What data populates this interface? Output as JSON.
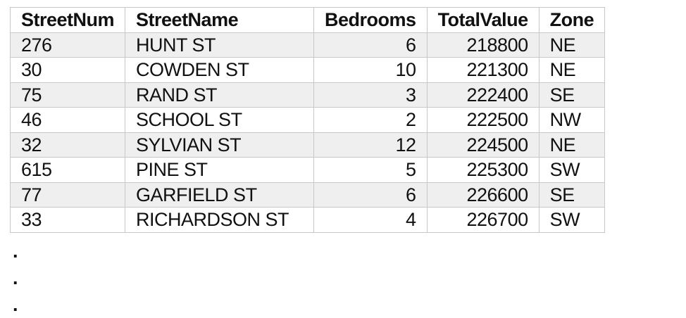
{
  "table": {
    "columns": [
      "StreetNum",
      "StreetName",
      "Bedrooms",
      "TotalValue",
      "Zone"
    ],
    "rows": [
      [
        "276",
        "HUNT ST",
        "6",
        "218800",
        "NE"
      ],
      [
        "30",
        "COWDEN ST",
        "10",
        "221300",
        "NE"
      ],
      [
        "75",
        "RAND ST",
        "3",
        "222400",
        "SE"
      ],
      [
        "46",
        "SCHOOL ST",
        "2",
        "222500",
        "NW"
      ],
      [
        "32",
        "SYLVIAN ST",
        "12",
        "224500",
        "NE"
      ],
      [
        "615",
        "PINE ST",
        "5",
        "225300",
        "SW"
      ],
      [
        "77",
        "GARFIELD ST",
        "6",
        "226600",
        "SE"
      ],
      [
        "33",
        "RICHARDSON ST",
        "4",
        "226700",
        "SW"
      ]
    ]
  },
  "continuation": [
    ".",
    ".",
    "."
  ]
}
